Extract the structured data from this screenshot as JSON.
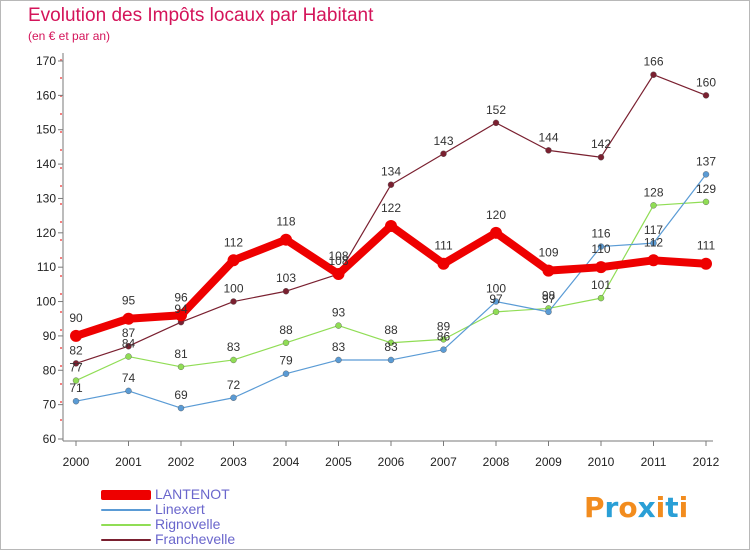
{
  "title": "Evolution des Impôts locaux par Habitant",
  "subtitle": "(en € et par an)",
  "logo": [
    "P",
    "r",
    "o",
    "x",
    "i",
    "t",
    "i"
  ],
  "logo_colors": [
    "#f28c1e",
    "#2a9fd6",
    "#f28c1e",
    "#2a9fd6",
    "#f28c1e",
    "#2a9fd6",
    "#f28c1e"
  ],
  "chart_data": {
    "type": "line",
    "x": [
      "2000",
      "2001",
      "2002",
      "2003",
      "2004",
      "2005",
      "2006",
      "2007",
      "2008",
      "2009",
      "2010",
      "2011",
      "2012"
    ],
    "ylim": [
      60,
      170
    ],
    "yticks": [
      "60",
      "70",
      "80",
      "90",
      "100",
      "110",
      "120",
      "130",
      "140",
      "150",
      "160",
      "170"
    ],
    "grid": false,
    "series": [
      {
        "name": "LANTENOT",
        "color": "#ee0000",
        "values": [
          90,
          95,
          96,
          112,
          118,
          108,
          122,
          111,
          120,
          109,
          110,
          112,
          111
        ],
        "labels": [
          "90",
          "95",
          "96",
          "112",
          "118",
          "108",
          "122",
          "111",
          "120",
          "109",
          "110",
          "112",
          "111"
        ]
      },
      {
        "name": "Linexert",
        "color": "#5a9bd5",
        "values": [
          71,
          74,
          69,
          72,
          79,
          83,
          83,
          86,
          100,
          97,
          116,
          117,
          137
        ],
        "labels": [
          "71",
          "74",
          "69",
          "72",
          "79",
          "83",
          "83",
          "86",
          "100",
          "97",
          "116",
          "117",
          "137"
        ]
      },
      {
        "name": "Rignovelle",
        "color": "#90dd55",
        "values": [
          77,
          84,
          81,
          83,
          88,
          93,
          88,
          89,
          97,
          98,
          101,
          128,
          129
        ],
        "labels": [
          "77",
          "84",
          "81",
          "83",
          "88",
          "93",
          "88",
          "89",
          "97",
          "98",
          "101",
          "128",
          "129"
        ]
      },
      {
        "name": "Franchevelle",
        "color": "#7a2030",
        "values": [
          82,
          87,
          94,
          100,
          103,
          108,
          134,
          143,
          152,
          144,
          142,
          166,
          160
        ],
        "labels": [
          "82",
          "87",
          "94",
          "100",
          "103",
          "108",
          "134",
          "143",
          "152",
          "144",
          "142",
          "166",
          "160"
        ]
      }
    ]
  }
}
